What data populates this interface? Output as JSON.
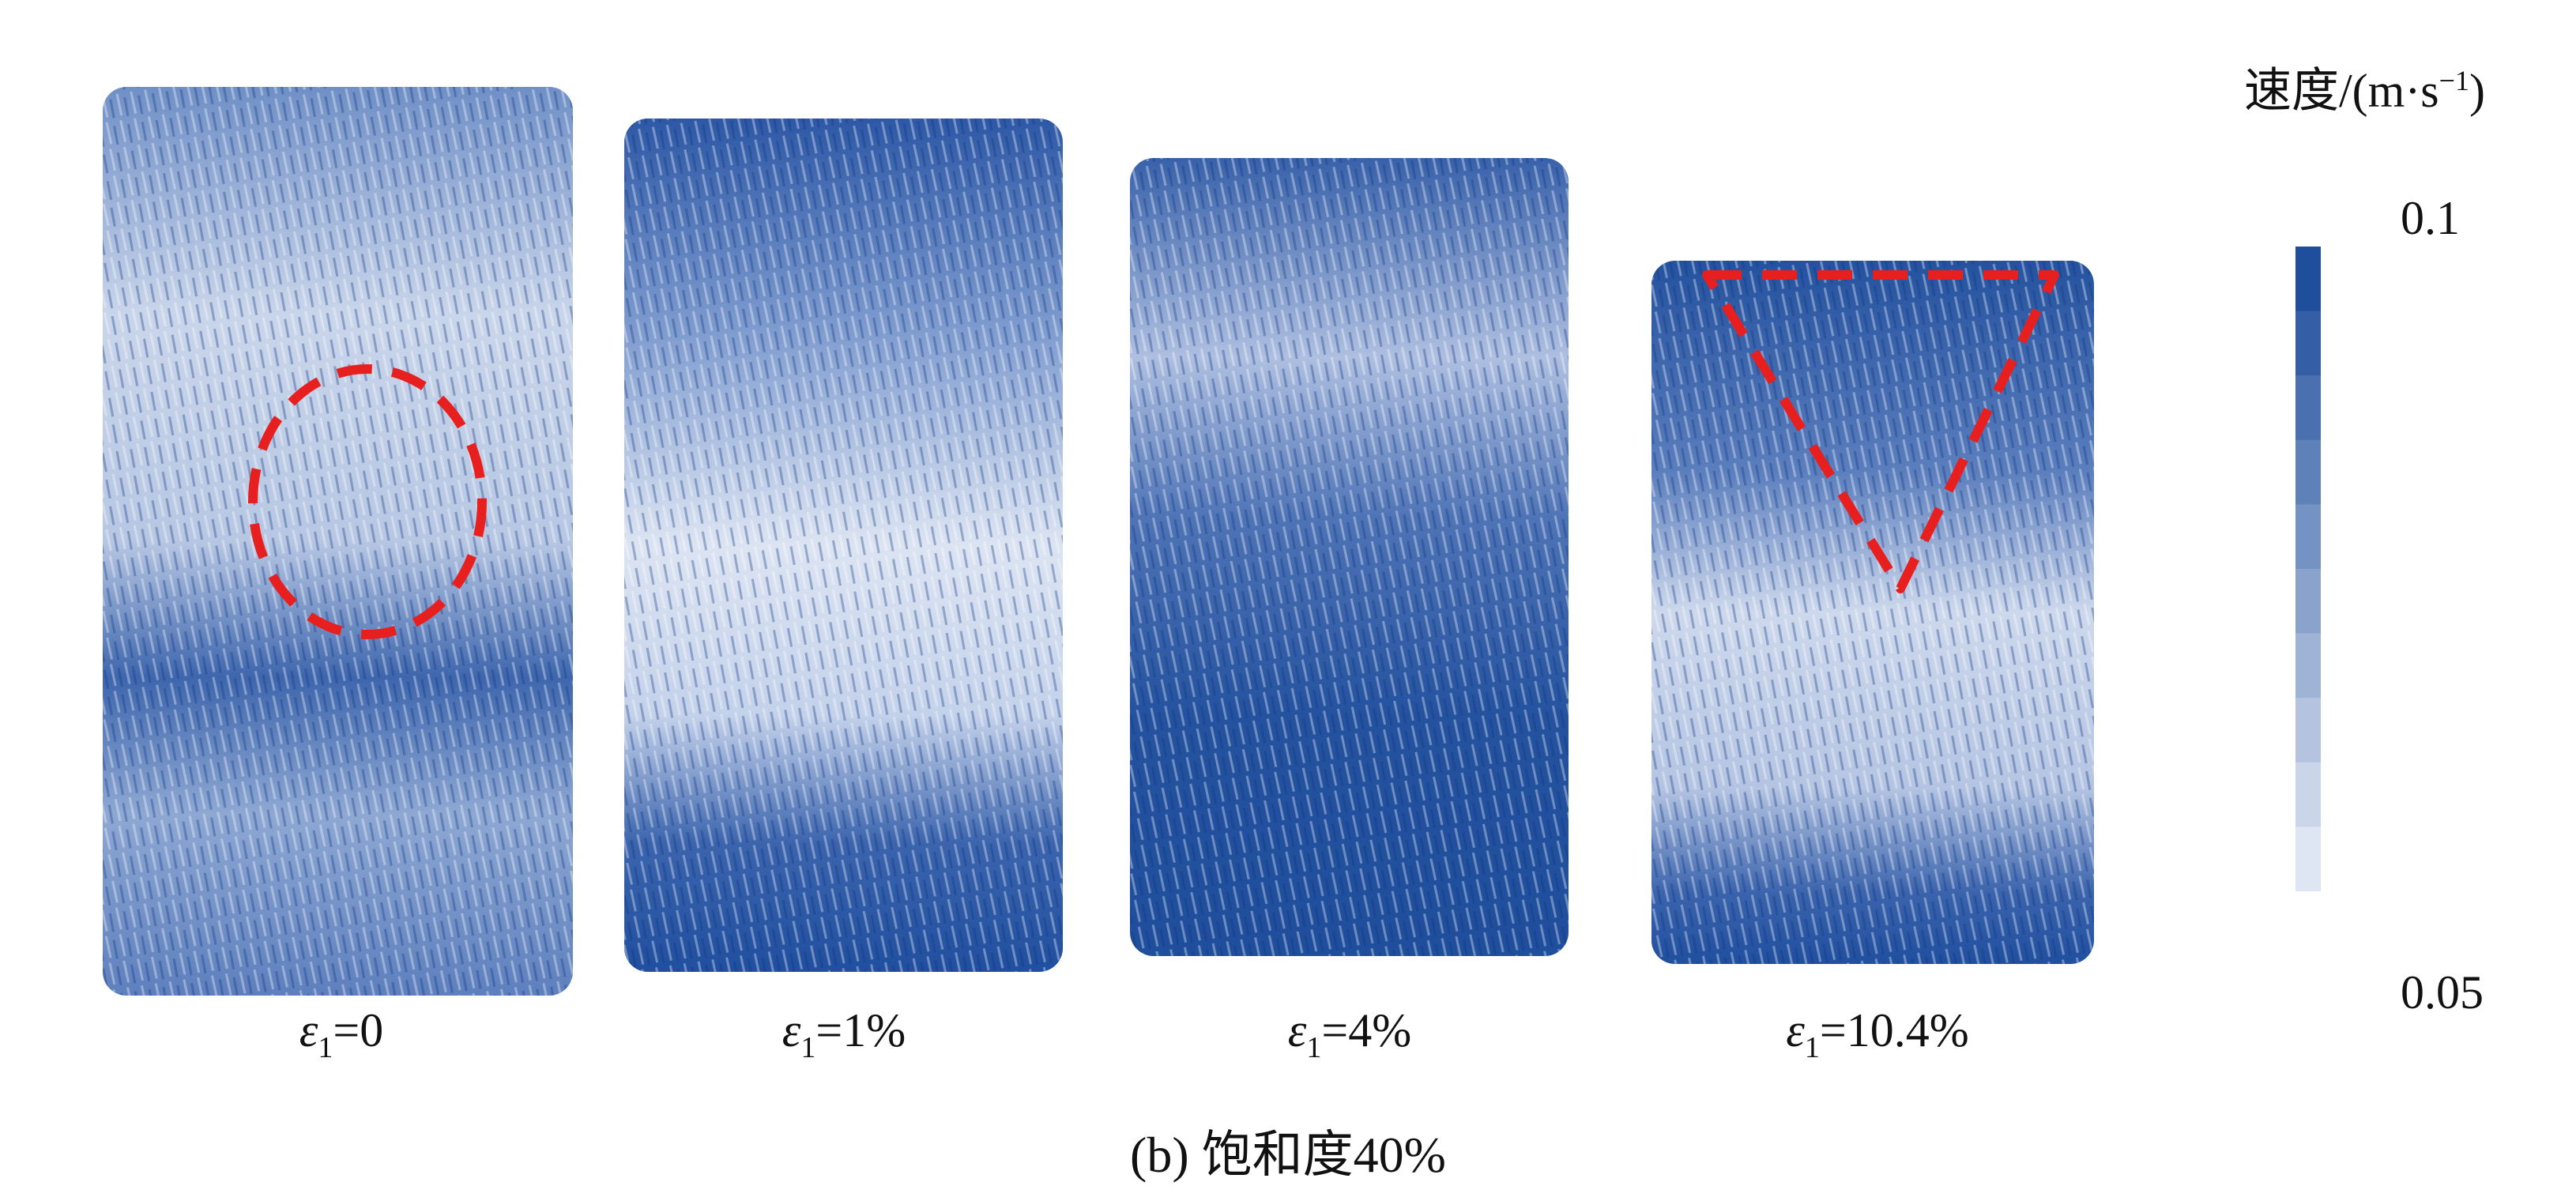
{
  "panels": [
    {
      "strain_label": "=0",
      "annotation": "circle"
    },
    {
      "strain_label": "=1%",
      "annotation": "none"
    },
    {
      "strain_label": "=4%",
      "annotation": "none"
    },
    {
      "strain_label": "=10.4%",
      "annotation": "triangle"
    }
  ],
  "strain_symbol": "ε",
  "strain_subscript": "1",
  "caption": "(b) 饱和度40%",
  "legend": {
    "title_prefix": "速度/(m·s",
    "title_exponent": "−1",
    "title_suffix": ")",
    "max_label": "0.1",
    "min_label": "0.05",
    "steps": 10
  },
  "colors": {
    "dark_blue": "#1f4e9c",
    "light_blue": "#dfe6f3",
    "annotation_red": "#e81f1f"
  }
}
